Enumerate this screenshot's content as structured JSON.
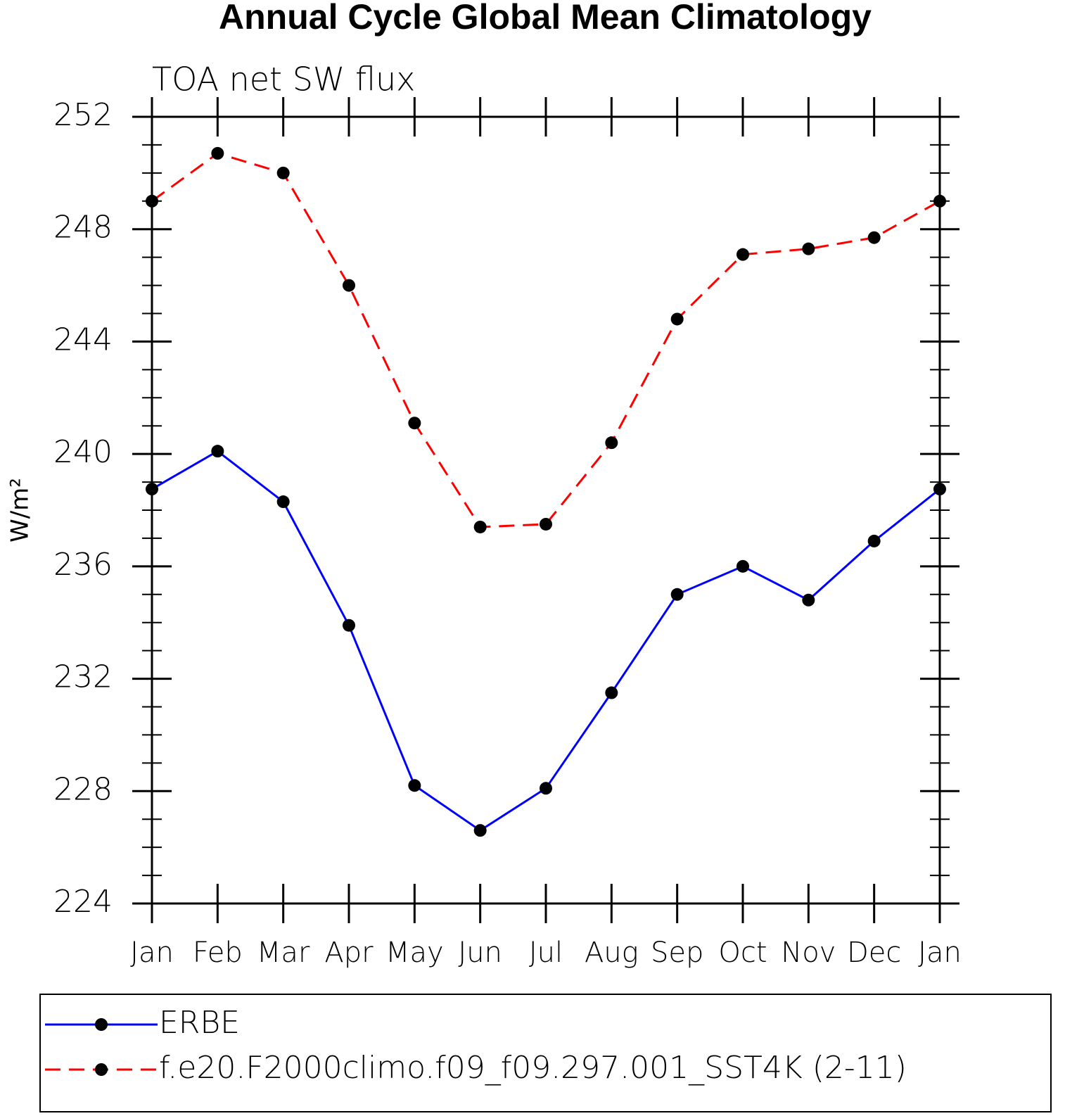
{
  "chart_data": {
    "type": "line",
    "title": "Annual Cycle Global Mean Climatology",
    "subtitle": "TOA net SW flux",
    "y_label": "W/m²",
    "categories": [
      "Jan",
      "Feb",
      "Mar",
      "Apr",
      "May",
      "Jun",
      "Jul",
      "Aug",
      "Sep",
      "Oct",
      "Nov",
      "Dec",
      "Jan"
    ],
    "series": [
      {
        "name": "ERBE",
        "color": "#0000ff",
        "line_style": "solid",
        "values": [
          238.75,
          240.1,
          238.3,
          233.9,
          228.2,
          226.6,
          228.1,
          231.5,
          235.0,
          236.0,
          234.8,
          236.9,
          238.75
        ]
      },
      {
        "name": "f.e20.F2000climo.f09_f09.297.001_SST4K (2-11)",
        "color": "#ff0000",
        "line_style": "dashed",
        "values": [
          249.0,
          250.7,
          250.0,
          246.0,
          241.1,
          237.4,
          237.5,
          240.4,
          244.8,
          247.1,
          247.3,
          247.7,
          249.0
        ]
      }
    ],
    "marker_color": "#000000",
    "ylim": [
      224,
      252
    ],
    "yticks": [
      224,
      228,
      232,
      236,
      240,
      244,
      248,
      252
    ]
  }
}
